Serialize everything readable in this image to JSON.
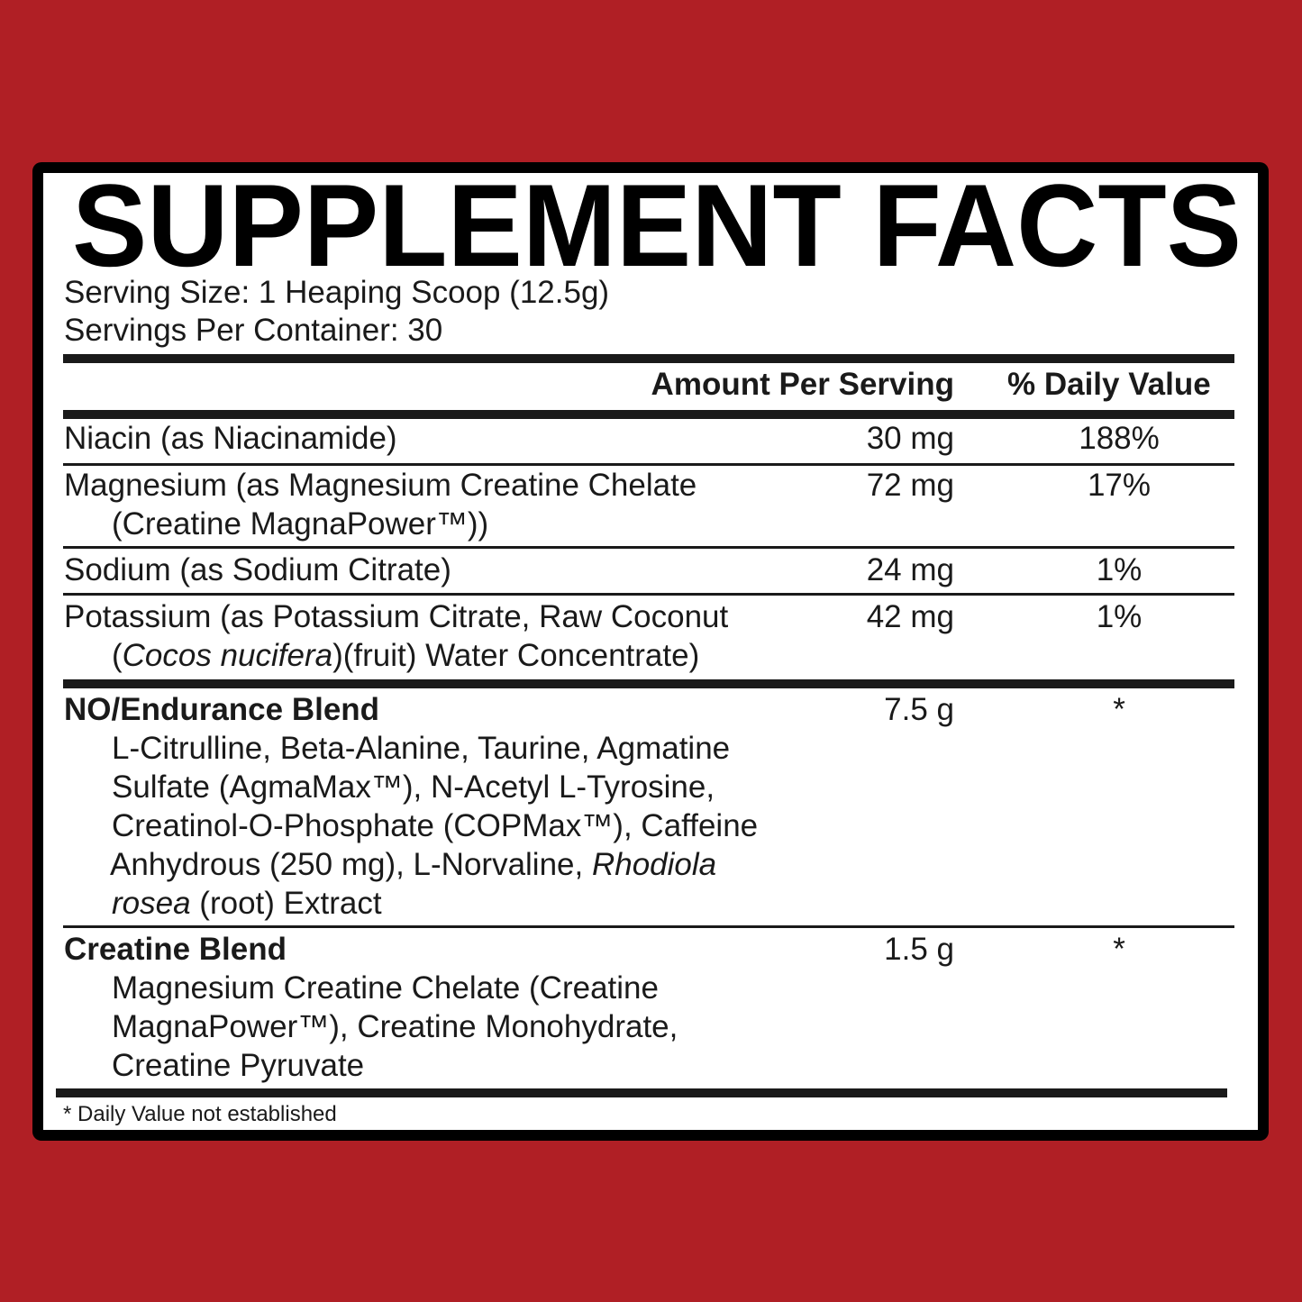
{
  "title": "SUPPLEMENT FACTS",
  "serving_size": "Serving Size: 1 Heaping Scoop (12.5g)",
  "servings_per_container": "Servings Per Container: 30",
  "header": {
    "amount": "Amount Per Serving",
    "daily_value": "% Daily Value"
  },
  "nutrients": [
    {
      "line1": "Niacin (as Niacinamide)",
      "amount": "30 mg",
      "dv": "188%"
    },
    {
      "line1": "Magnesium (as Magnesium Creatine Chelate",
      "line2": "(Creatine MagnaPower™))",
      "amount": "72 mg",
      "dv": "17%"
    },
    {
      "line1": "Sodium (as Sodium Citrate)",
      "amount": "24 mg",
      "dv": "1%"
    },
    {
      "line1": "Potassium (as Potassium Citrate, Raw Coconut",
      "line2_a": "(",
      "line2_italic": "Cocos nucifera",
      "line2_b": ")(fruit) Water Concentrate)",
      "amount": "42 mg",
      "dv": "1%"
    }
  ],
  "blends": [
    {
      "name": "NO/Endurance Blend",
      "amount": "7.5 g",
      "dv": "*",
      "lines": [
        "L-Citrulline, Beta-Alanine, Taurine, Agmatine",
        "Sulfate (AgmaMax™), N-Acetyl L-Tyrosine,",
        "Creatinol-O-Phosphate (COPMax™), Caffeine",
        "Anhydrous (250 mg), L-Norvaline, "
      ],
      "italic1": "Rhodiola",
      "italic2": "rosea",
      "last": " (root) Extract"
    },
    {
      "name": "Creatine Blend",
      "amount": "1.5 g",
      "dv": "*",
      "lines": [
        "Magnesium Creatine Chelate (Creatine",
        "MagnaPower™), Creatine Monohydrate,",
        "Creatine Pyruvate"
      ]
    }
  ],
  "footnote": "* Daily Value not established",
  "colors": {
    "background": "#b01f25",
    "border": "#000000",
    "panel": "#ffffff",
    "text": "#1a1a1a"
  }
}
